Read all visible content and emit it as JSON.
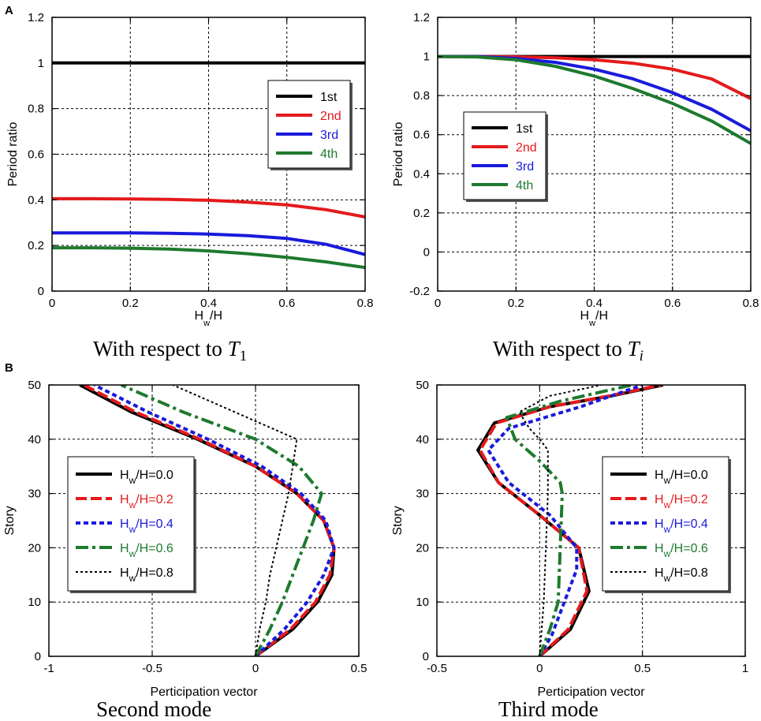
{
  "panel_labels": {
    "a": "A",
    "b": "B"
  },
  "captions": {
    "a1_prefix": "With respect to ",
    "a1_symbol": "T",
    "a1_sub": "1",
    "a2_prefix": "With respect to ",
    "a2_symbol": "T",
    "a2_sub": "i",
    "b1": "Second mode",
    "b2": "Third mode"
  },
  "colors": {
    "1st": "#000000",
    "2nd": "#e41a1c",
    "3rd": "#1a1adc",
    "4th": "#1e7a2e"
  },
  "chart_data": [
    {
      "type": "line",
      "panel": "A-left",
      "xlabel": {
        "main": "H",
        "sub": "w",
        "rest": "/H"
      },
      "ylabel": "Period ratio",
      "xlim": [
        0,
        0.8
      ],
      "ylim": [
        0,
        1.2
      ],
      "xticks": [
        "0",
        "0.2",
        "0.4",
        "0.6",
        "0.8"
      ],
      "yticks": [
        "0",
        "0.2",
        "0.4",
        "0.6",
        "0.8",
        "1",
        "1.2"
      ],
      "legend": [
        "1st",
        "2nd",
        "3rd",
        "4th"
      ],
      "series": [
        {
          "name": "1st",
          "x": [
            0,
            0.8
          ],
          "y": [
            1,
            1
          ]
        },
        {
          "name": "2nd",
          "x": [
            0,
            0.1,
            0.2,
            0.3,
            0.4,
            0.5,
            0.6,
            0.7,
            0.8
          ],
          "y": [
            0.405,
            0.405,
            0.404,
            0.402,
            0.398,
            0.39,
            0.378,
            0.357,
            0.325
          ]
        },
        {
          "name": "3rd",
          "x": [
            0,
            0.1,
            0.2,
            0.3,
            0.4,
            0.5,
            0.6,
            0.7,
            0.8
          ],
          "y": [
            0.255,
            0.255,
            0.255,
            0.253,
            0.25,
            0.243,
            0.231,
            0.205,
            0.16
          ]
        },
        {
          "name": "4th",
          "x": [
            0,
            0.1,
            0.2,
            0.3,
            0.4,
            0.5,
            0.6,
            0.7,
            0.8
          ],
          "y": [
            0.19,
            0.19,
            0.188,
            0.184,
            0.176,
            0.164,
            0.148,
            0.128,
            0.103
          ]
        }
      ]
    },
    {
      "type": "line",
      "panel": "A-right",
      "xlabel": {
        "main": "H",
        "sub": "w",
        "rest": "/H"
      },
      "ylabel": "Period ratio",
      "xlim": [
        0,
        0.8
      ],
      "ylim": [
        -0.2,
        1.2
      ],
      "xticks": [
        "0",
        "0.2",
        "0.4",
        "0.6",
        "0.8"
      ],
      "yticks": [
        "-0.2",
        "0",
        "0.2",
        "0.4",
        "0.6",
        "0.8",
        "1",
        "1.2"
      ],
      "legend": [
        "1st",
        "2nd",
        "3rd",
        "4th"
      ],
      "series": [
        {
          "name": "1st",
          "x": [
            0,
            0.8
          ],
          "y": [
            1,
            1
          ]
        },
        {
          "name": "2nd",
          "x": [
            0,
            0.1,
            0.2,
            0.3,
            0.4,
            0.5,
            0.6,
            0.7,
            0.8
          ],
          "y": [
            1,
            1,
            0.998,
            0.993,
            0.983,
            0.965,
            0.935,
            0.885,
            0.785
          ]
        },
        {
          "name": "3rd",
          "x": [
            0,
            0.1,
            0.2,
            0.3,
            0.4,
            0.5,
            0.6,
            0.7,
            0.8
          ],
          "y": [
            1,
            1,
            0.99,
            0.97,
            0.935,
            0.885,
            0.815,
            0.73,
            0.62
          ]
        },
        {
          "name": "4th",
          "x": [
            0,
            0.1,
            0.2,
            0.3,
            0.4,
            0.5,
            0.6,
            0.7,
            0.8
          ],
          "y": [
            1,
            0.998,
            0.983,
            0.95,
            0.9,
            0.835,
            0.76,
            0.67,
            0.555
          ]
        }
      ]
    },
    {
      "type": "line",
      "panel": "B-left",
      "xlabel": "Perticipation vector",
      "ylabel": "Story",
      "xlim": [
        -1,
        0.5
      ],
      "ylim": [
        0,
        50
      ],
      "xticks": [
        "-1",
        "-0.5",
        "0",
        "0.5"
      ],
      "yticks": [
        "0",
        "10",
        "20",
        "30",
        "40",
        "50"
      ],
      "legend": [
        "H_w/H=0.0",
        "H_w/H=0.2",
        "H_w/H=0.4",
        "H_w/H=0.6",
        "H_w/H=0.8"
      ],
      "series": [
        {
          "name": "H_w/H=0.0",
          "x": [
            0,
            0.18,
            0.3,
            0.37,
            0.38,
            0.33,
            0.2,
            0.0,
            -0.28,
            -0.6,
            -0.85
          ],
          "y": [
            0,
            5,
            10,
            15,
            20,
            25,
            30,
            35,
            40,
            45,
            50
          ]
        },
        {
          "name": "H_w/H=0.2",
          "x": [
            0,
            0.17,
            0.29,
            0.36,
            0.38,
            0.33,
            0.2,
            0.0,
            -0.27,
            -0.58,
            -0.83
          ],
          "y": [
            0,
            5,
            10,
            15,
            20,
            25,
            30,
            35,
            40,
            45,
            50
          ]
        },
        {
          "name": "H_w/H=0.4",
          "x": [
            0,
            0.14,
            0.25,
            0.33,
            0.38,
            0.34,
            0.22,
            0.03,
            -0.23,
            -0.52,
            -0.78
          ],
          "y": [
            0,
            5,
            10,
            15,
            20,
            25,
            30,
            35,
            40,
            45,
            50
          ]
        },
        {
          "name": "H_w/H=0.6",
          "x": [
            0,
            0.07,
            0.13,
            0.18,
            0.23,
            0.28,
            0.32,
            0.21,
            0.0,
            -0.35,
            -0.65
          ],
          "y": [
            0,
            5,
            10,
            15,
            20,
            25,
            30,
            35,
            40,
            45,
            50
          ]
        },
        {
          "name": "H_w/H=0.8",
          "x": [
            0,
            0.02,
            0.05,
            0.07,
            0.1,
            0.13,
            0.16,
            0.18,
            0.2,
            -0.1,
            -0.4
          ],
          "y": [
            0,
            5,
            10,
            15,
            20,
            25,
            30,
            35,
            40,
            45,
            50
          ]
        }
      ]
    },
    {
      "type": "line",
      "panel": "B-right",
      "xlabel": "Perticipation vector",
      "ylabel": "Story",
      "xlim": [
        -0.5,
        1
      ],
      "ylim": [
        0,
        50
      ],
      "xticks": [
        "-0.5",
        "0",
        "0.5",
        "1"
      ],
      "yticks": [
        "0",
        "10",
        "20",
        "30",
        "40",
        "50"
      ],
      "legend": [
        "H_w/H=0.0",
        "H_w/H=0.2",
        "H_w/H=0.4",
        "H_w/H=0.6",
        "H_w/H=0.8"
      ],
      "series": [
        {
          "name": "H_w/H=0.0",
          "x": [
            0,
            0.15,
            0.24,
            0.19,
            0.0,
            -0.2,
            -0.3,
            -0.22,
            0.05,
            0.35,
            0.6
          ],
          "y": [
            0,
            5,
            12,
            20,
            26,
            32,
            38,
            43,
            46,
            48,
            50
          ]
        },
        {
          "name": "H_w/H=0.2",
          "x": [
            0,
            0.14,
            0.23,
            0.19,
            0.0,
            -0.2,
            -0.29,
            -0.21,
            0.05,
            0.34,
            0.59
          ],
          "y": [
            0,
            5,
            12,
            20,
            26,
            32,
            38,
            43,
            46,
            48,
            50
          ]
        },
        {
          "name": "H_w/H=0.4",
          "x": [
            0,
            0.06,
            0.12,
            0.18,
            0.18,
            0.05,
            -0.15,
            -0.25,
            -0.15,
            0.2,
            0.5
          ],
          "y": [
            0,
            4,
            10,
            16,
            20,
            26,
            32,
            38,
            42,
            46,
            50
          ]
        },
        {
          "name": "H_w/H=0.6",
          "x": [
            0,
            0.05,
            0.09,
            0.1,
            0.11,
            0.1,
            0.0,
            -0.12,
            -0.16,
            0.1,
            0.45
          ],
          "y": [
            0,
            5,
            10,
            20,
            30,
            32,
            36,
            40,
            44,
            47,
            50
          ]
        },
        {
          "name": "H_w/H=0.8",
          "x": [
            0,
            0.01,
            0.02,
            0.03,
            0.04,
            0.04,
            0.0,
            -0.05,
            -0.1,
            0.05,
            0.3
          ],
          "y": [
            0,
            5,
            10,
            20,
            30,
            38,
            40,
            42,
            45,
            48,
            50
          ]
        }
      ]
    }
  ]
}
